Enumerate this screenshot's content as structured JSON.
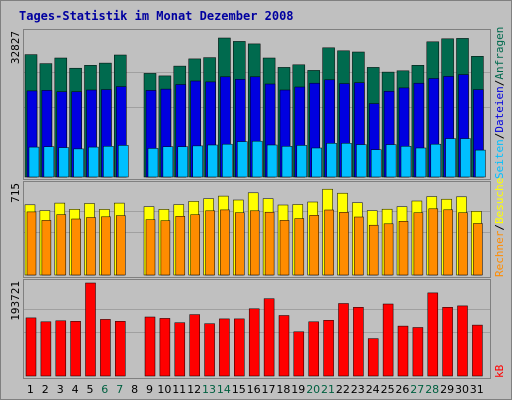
{
  "title": "Tages-Statistik im Monat Dezember 2008",
  "colors": {
    "background": "#C0C0C0",
    "frame": "#808080",
    "title": "#0000A0",
    "weekday_label": "#000000",
    "weekend_label": "#006040",
    "kb_label": "#FF0000"
  },
  "chart_data": {
    "type": "bar",
    "categories": [
      "1",
      "2",
      "3",
      "4",
      "5",
      "6",
      "7",
      "8",
      "9",
      "10",
      "11",
      "12",
      "13",
      "14",
      "15",
      "16",
      "17",
      "18",
      "19",
      "20",
      "21",
      "22",
      "23",
      "24",
      "25",
      "26",
      "27",
      "28",
      "29",
      "30",
      "31"
    ],
    "missing_days": [
      "8"
    ],
    "weekend_days": [
      "6",
      "7",
      "13",
      "14",
      "20",
      "21",
      "27",
      "28"
    ],
    "panels": [
      {
        "id": "top",
        "max_label": "32827",
        "ylim": [
          0,
          32827
        ],
        "series": [
          {
            "name": "Anfragen",
            "color": "#006A4E",
            "values": [
              28700,
              26600,
              27900,
              25500,
              26200,
              26700,
              28600,
              null,
              24300,
              23700,
              26000,
              27700,
              28000,
              32600,
              31800,
              31200,
              27900,
              25700,
              26300,
              25000,
              30300,
              29600,
              29300,
              25700,
              24600,
              24900,
              26200,
              31700,
              32400,
              32500,
              28300
            ]
          },
          {
            "name": "Dateien",
            "color": "#0000E0",
            "values": [
              20200,
              20300,
              20000,
              20000,
              20400,
              20500,
              21200,
              null,
              20300,
              20600,
              21700,
              22500,
              22300,
              23500,
              22900,
              23500,
              21800,
              20400,
              21100,
              22000,
              22800,
              21900,
              22100,
              17200,
              20100,
              20900,
              22000,
              23100,
              23600,
              24000,
              20500
            ]
          },
          {
            "name": "Seiten",
            "color": "#00C0FF",
            "values": [
              7000,
              7100,
              6900,
              6600,
              7000,
              7200,
              7400,
              null,
              6700,
              7100,
              7100,
              7300,
              7500,
              7700,
              8300,
              8400,
              7500,
              7200,
              7400,
              6800,
              7900,
              7900,
              7600,
              6400,
              7600,
              7200,
              6800,
              7700,
              9000,
              9000,
              6300
            ]
          }
        ]
      },
      {
        "id": "middle",
        "max_label": "715",
        "ylim": [
          0,
          715
        ],
        "series": [
          {
            "name": "Besuche",
            "color": "#FFFF00",
            "values": [
              558,
              512,
              571,
              522,
              568,
              521,
              571,
              null,
              543,
              521,
              559,
              585,
              606,
              627,
              596,
              653,
              606,
              556,
              560,
              580,
              682,
              650,
              574,
              511,
              523,
              543,
              588,
              623,
              602,
              621,
              506
            ]
          },
          {
            "name": "Rechner",
            "color": "#FF8C00",
            "values": [
              501,
              434,
              480,
              445,
              457,
              462,
              472,
              null,
              439,
              431,
              466,
              479,
              510,
              517,
              495,
              510,
              499,
              434,
              448,
              474,
              516,
              498,
              461,
              396,
              407,
              427,
              495,
              526,
              518,
              495,
              409
            ]
          }
        ]
      },
      {
        "id": "bottom",
        "max_label": "193721",
        "ylim": [
          0,
          193721
        ],
        "series": [
          {
            "name": "kB",
            "color": "#FF0000",
            "values": [
              121000,
              113000,
              115000,
              114000,
              193721,
              118000,
              114000,
              null,
              123000,
              120000,
              111000,
              128000,
              109000,
              119000,
              119000,
              140000,
              161000,
              126000,
              92000,
              113000,
              116000,
              151000,
              143000,
              78000,
              150000,
              104000,
              101000,
              173000,
              143000,
              146000,
              106000
            ]
          }
        ]
      }
    ]
  }
}
